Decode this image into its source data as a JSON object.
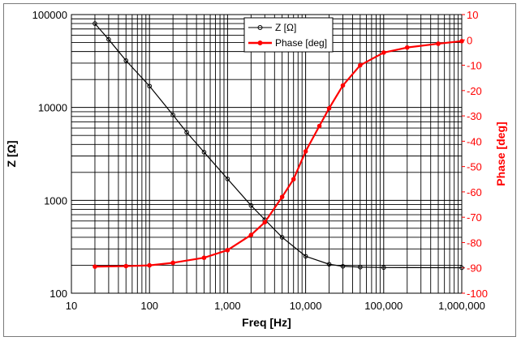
{
  "chart_data": {
    "type": "line",
    "x_scale": "log",
    "xlabel": "Freq [Hz]",
    "ylabel": "Z [Ω]",
    "y2label": "Phase [deg]",
    "xlim": [
      10,
      1000000
    ],
    "ylim": [
      100,
      100000
    ],
    "y2lim": [
      -100,
      10
    ],
    "grid": true,
    "legend_position": "top-center",
    "x_ticks": [
      10,
      100,
      1000,
      10000,
      100000,
      1000000
    ],
    "x_tick_labels": [
      "10",
      "100",
      "1,000",
      "10,000",
      "100,000",
      "1,000,000"
    ],
    "y_ticks": [
      100,
      1000,
      10000,
      100000
    ],
    "y_tick_labels": [
      "100",
      "1000",
      "10000",
      "100000"
    ],
    "y2_ticks": [
      10,
      0,
      -10,
      -20,
      -30,
      -40,
      -50,
      -60,
      -70,
      -80,
      -90,
      -100
    ],
    "y2_tick_labels": [
      "10",
      "0",
      "-10",
      "-20",
      "-30",
      "-40",
      "-50",
      "-60",
      "-70",
      "-80",
      "-90",
      "-100"
    ],
    "series": [
      {
        "name": "Z [Ω]",
        "axis": "left",
        "color": "#000000",
        "marker": "circle",
        "x": [
          20,
          30,
          50,
          100,
          200,
          300,
          500,
          1000,
          2000,
          3000,
          5000,
          10000,
          20000,
          30000,
          50000,
          100000,
          1000000
        ],
        "values": [
          80000,
          54000,
          32000,
          17000,
          8300,
          5400,
          3300,
          1700,
          880,
          620,
          400,
          250,
          205,
          195,
          191,
          189,
          188
        ]
      },
      {
        "name": "Phase [deg]",
        "axis": "right",
        "color": "#ff0000",
        "marker": "circle",
        "x": [
          20,
          50,
          100,
          200,
          500,
          1000,
          2000,
          3000,
          5000,
          7000,
          10000,
          15000,
          20000,
          30000,
          50000,
          100000,
          200000,
          500000,
          1000000
        ],
        "values": [
          -89.5,
          -89.3,
          -89,
          -88,
          -86,
          -83,
          -77,
          -72,
          -62,
          -55,
          -44,
          -34,
          -27,
          -18,
          -10,
          -5,
          -3,
          -1.5,
          -0.5
        ]
      }
    ]
  }
}
